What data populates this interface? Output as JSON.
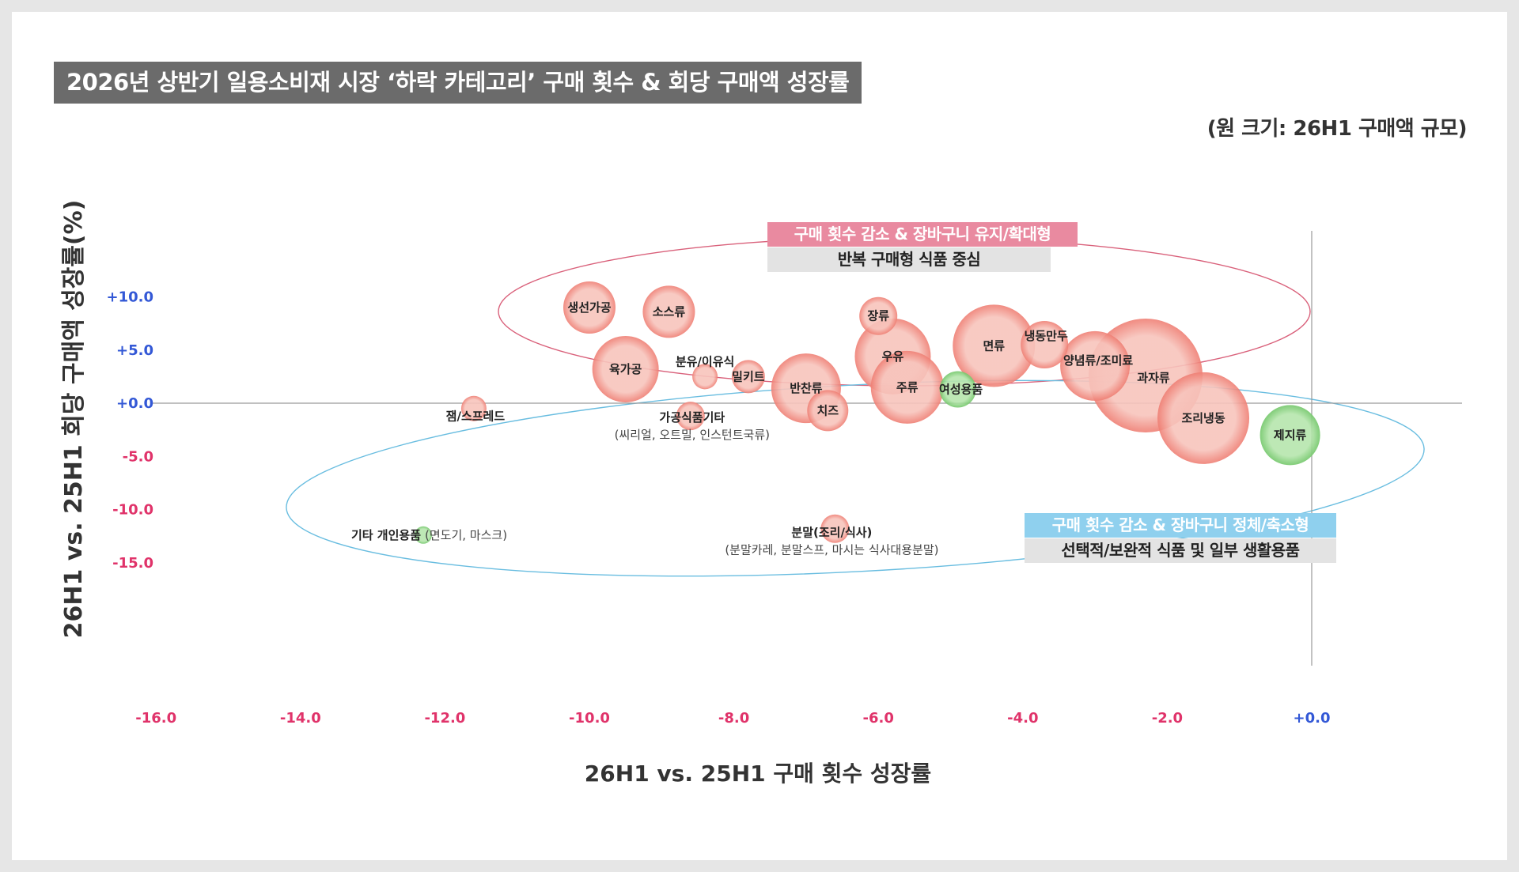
{
  "title": "2026년 상반기 일용소비재 시장 ‘하락 카테고리’ 구매 횟수 & 회당 구매액 성장률",
  "size_note": "(원 크기: 26H1 구매액 규모)",
  "groups": {
    "upper_title": "구매 횟수 감소 & 장바구니 유지/확대형",
    "upper_sub": "반복 구매형 식품 중심",
    "lower_title": "구매 횟수 감소 & 장바구니 정체/축소형",
    "lower_sub": "선택적/보완적 식품 및 일부 생활용품"
  },
  "colors": {
    "bubble_red": "#ef7f74",
    "bubble_green": "#73c76a",
    "upper_ellipse": "#d9607a",
    "lower_ellipse": "#69bde0",
    "tick_negative": "#e0336a",
    "tick_positive": "#3358d6",
    "axis_line": "#9a9a9a"
  },
  "chart_data": {
    "type": "scatter",
    "xlabel": "26H1 vs. 25H1 구매 횟수 성장률",
    "ylabel": "26H1 vs. 25H1 회당 구매액 성장률(%)",
    "xlim": [
      -16.0,
      0.0
    ],
    "ylim": [
      -15.0,
      10.0
    ],
    "x_ticks": [
      "-16.0",
      "-14.0",
      "-12.0",
      "-10.0",
      "-8.0",
      "-6.0",
      "-4.0",
      "-2.0",
      "+0.0"
    ],
    "x_tick_values": [
      -16,
      -14,
      -12,
      -10,
      -8,
      -6,
      -4,
      -2,
      0
    ],
    "y_ticks": [
      "+10.0",
      "+5.0",
      "+0.0",
      "-5.0",
      "-10.0",
      "-15.0"
    ],
    "y_tick_values": [
      10,
      5,
      0,
      -5,
      -10,
      -15
    ],
    "grid": false,
    "size_meaning": "26H1 구매액 규모",
    "points": [
      {
        "name": "생선가공",
        "x": -10.0,
        "y": 9.0,
        "size": 33,
        "color": "red"
      },
      {
        "name": "소스류",
        "x": -8.9,
        "y": 8.6,
        "size": 33,
        "color": "red"
      },
      {
        "name": "육가공",
        "x": -9.5,
        "y": 3.2,
        "size": 42,
        "color": "red"
      },
      {
        "name": "분유/이유식",
        "x": -8.4,
        "y": 2.5,
        "size": 16,
        "color": "red"
      },
      {
        "name": "밀키트",
        "x": -7.8,
        "y": 2.5,
        "size": 21,
        "color": "red"
      },
      {
        "name": "반찬류",
        "x": -7.0,
        "y": 1.4,
        "size": 44,
        "color": "red"
      },
      {
        "name": "치즈",
        "x": -6.7,
        "y": -0.7,
        "size": 26,
        "color": "red"
      },
      {
        "name": "가공식품기타",
        "sub": "(씨리얼, 오트밀, 인스턴트국류)",
        "x": -8.6,
        "y": -1.2,
        "size": 18,
        "color": "red"
      },
      {
        "name": "잼/스프레드",
        "x": -11.6,
        "y": -0.5,
        "size": 16,
        "color": "red"
      },
      {
        "name": "장류",
        "x": -6.0,
        "y": 8.2,
        "size": 24,
        "color": "red"
      },
      {
        "name": "우유",
        "x": -5.8,
        "y": 4.4,
        "size": 48,
        "color": "red"
      },
      {
        "name": "주류",
        "x": -5.6,
        "y": 1.5,
        "size": 46,
        "color": "red"
      },
      {
        "name": "여성용품",
        "x": -4.9,
        "y": 1.3,
        "size": 23,
        "color": "green"
      },
      {
        "name": "면류",
        "x": -4.4,
        "y": 5.4,
        "size": 52,
        "color": "red"
      },
      {
        "name": "냉동만두",
        "x": -3.7,
        "y": 5.5,
        "size": 30,
        "color": "red"
      },
      {
        "name": "양념류/조미료",
        "x": -3.0,
        "y": 3.5,
        "size": 44,
        "color": "red"
      },
      {
        "name": "과자류",
        "x": -2.3,
        "y": 2.6,
        "size": 72,
        "color": "red"
      },
      {
        "name": "조리냉동",
        "x": -1.5,
        "y": -1.4,
        "size": 58,
        "color": "red"
      },
      {
        "name": "제지류",
        "x": -0.3,
        "y": -3.0,
        "size": 38,
        "color": "green"
      },
      {
        "name": "기타 개인용품",
        "sub": "(면도기, 마스크)",
        "x": -12.3,
        "y": -12.4,
        "size": 11,
        "color": "green"
      },
      {
        "name": "분말(조리/식사)",
        "sub": "(분말카레, 분말스프, 마시는 식사대용분말)",
        "x": -6.6,
        "y": -11.8,
        "size": 18,
        "color": "red"
      }
    ]
  }
}
